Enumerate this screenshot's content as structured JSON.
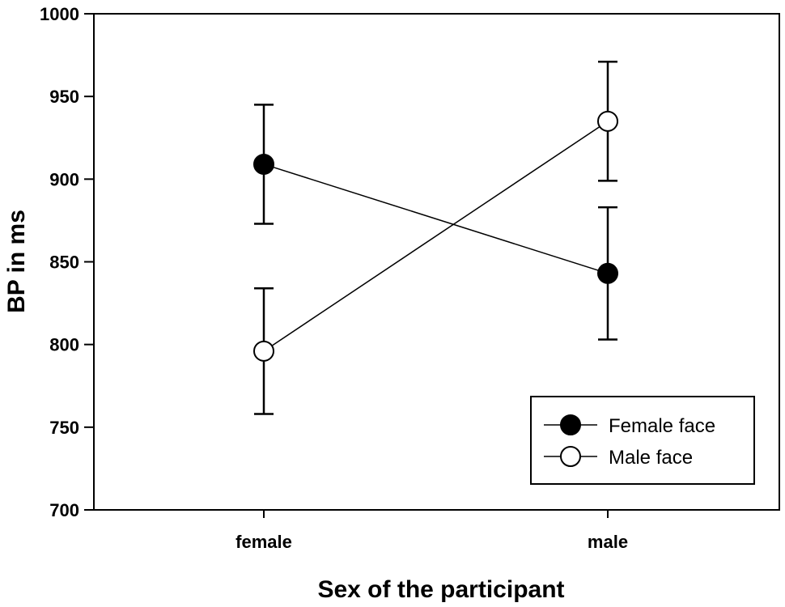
{
  "chart_data": {
    "type": "line",
    "title": "",
    "xlabel": "Sex of the participant",
    "ylabel": "BP in ms",
    "categories": [
      "female",
      "male"
    ],
    "ylim": [
      700,
      1000
    ],
    "yticks": [
      700,
      750,
      800,
      850,
      900,
      950,
      1000
    ],
    "grid": false,
    "legend_position": "bottom-right",
    "series": [
      {
        "name": "Female face",
        "marker": "filled-circle",
        "color": "#000000",
        "values": [
          909,
          843
        ],
        "errors": [
          36,
          40
        ]
      },
      {
        "name": "Male face",
        "marker": "open-circle",
        "color": "#000000",
        "values": [
          796,
          935
        ],
        "errors": [
          38,
          36
        ]
      }
    ]
  }
}
